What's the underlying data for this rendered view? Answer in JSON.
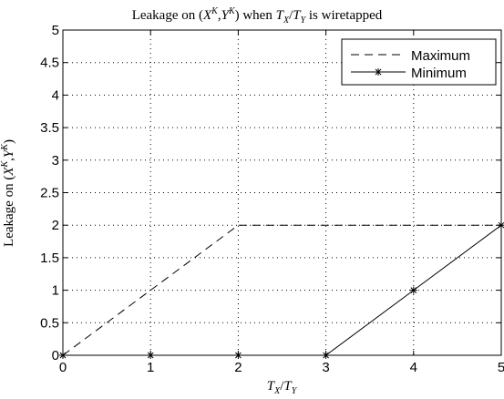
{
  "chart_data": {
    "type": "line",
    "title": {
      "prefix": "Leakage on (",
      "x": "X",
      "x_sup": "K",
      "comma": ",",
      "y": "Y",
      "y_sup": "K",
      "mid": ") when ",
      "tx": "T",
      "tx_sub": "X",
      "slash": "/",
      "ty": "T",
      "ty_sub": "Y",
      "suffix": " is wiretapped"
    },
    "xlabel": {
      "tx": "T",
      "tx_sub": "X",
      "slash": "/",
      "ty": "T",
      "ty_sub": "Y"
    },
    "ylabel": {
      "prefix": "Leakage on (",
      "x": "X",
      "x_sup": "K",
      "comma": ",",
      "y": "Y",
      "y_sup": "K",
      "suffix": ")"
    },
    "xlim": [
      0,
      5
    ],
    "ylim": [
      0,
      5
    ],
    "x_ticks": [
      0,
      1,
      2,
      3,
      4,
      5
    ],
    "y_ticks": [
      0,
      0.5,
      1,
      1.5,
      2,
      2.5,
      3,
      3.5,
      4,
      4.5,
      5
    ],
    "y_tick_labels": [
      "0",
      "0.5",
      "1",
      "1.5",
      "2",
      "2.5",
      "3",
      "3.5",
      "4",
      "4.5",
      "5"
    ],
    "grid": true,
    "legend_position": "top-right",
    "series": [
      {
        "name": "Maximum",
        "line_style": "dashed",
        "marker": "none",
        "x": [
          0,
          1,
          2,
          3,
          4,
          5
        ],
        "y": [
          0,
          1,
          2,
          2,
          2,
          2
        ]
      },
      {
        "name": "Minimum",
        "line_style": "solid",
        "marker": "asterisk",
        "x": [
          0,
          1,
          2,
          3,
          4,
          5
        ],
        "y": [
          0,
          0,
          0,
          0,
          1,
          2
        ]
      }
    ]
  }
}
